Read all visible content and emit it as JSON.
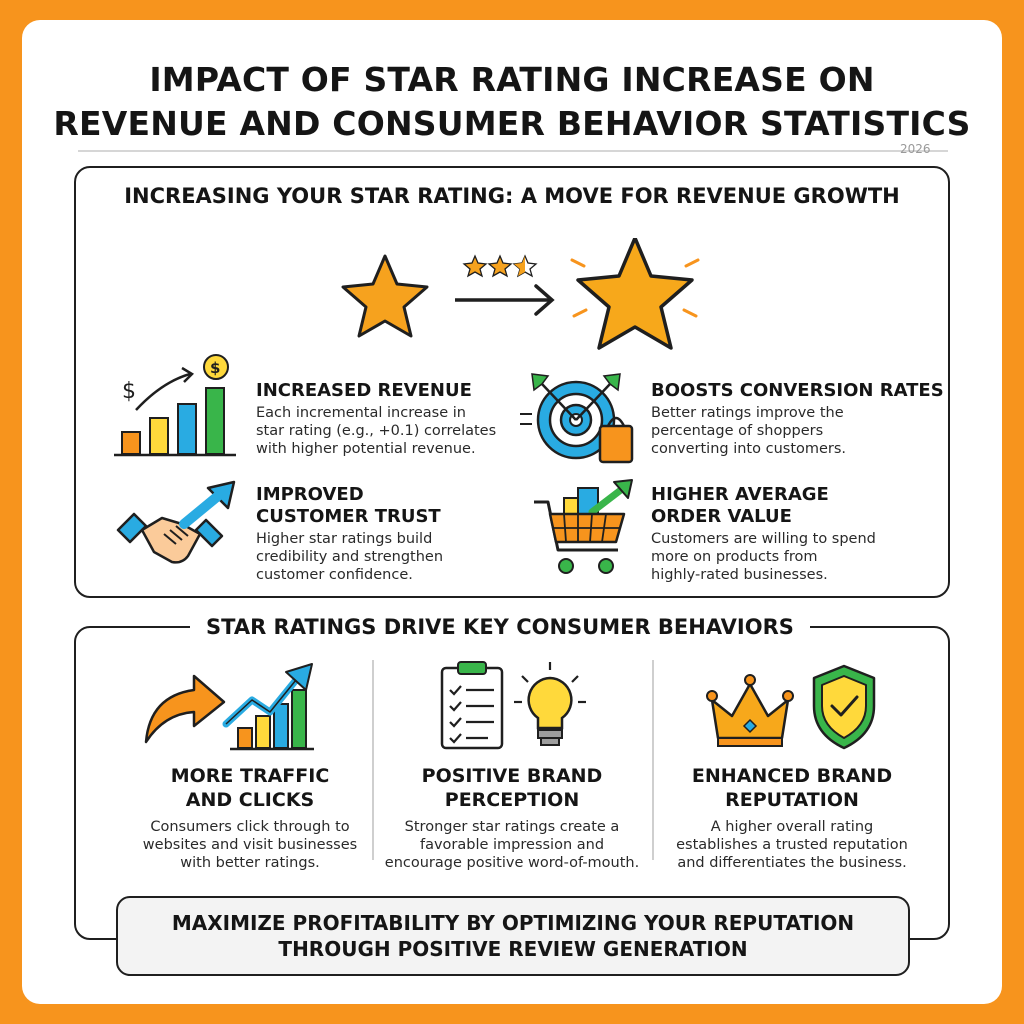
{
  "header": {
    "title_line1": "IMPACT OF STAR RATING INCREASE ON",
    "title_line2": "REVENUE AND CONSUMER BEHAVIOR STATISTICS",
    "year": "2026"
  },
  "section1": {
    "title": "INCREASING YOUR STAR RATING: A MOVE FOR REVENUE GROWTH",
    "mini_rating_stars": 2.5,
    "features": [
      {
        "icon": "revenue-chart-icon",
        "title": "INCREASED REVENUE",
        "desc_lines": [
          "Each incremental increase in",
          "star rating (e.g., +0.1) correlates",
          "with higher potential revenue."
        ]
      },
      {
        "icon": "target-bag-icon",
        "title": "BOOSTS CONVERSION RATES",
        "desc_lines": [
          "Better ratings improve the",
          "percentage of shoppers",
          "converting into customers."
        ]
      },
      {
        "icon": "handshake-icon",
        "title_lines": [
          "IMPROVED",
          "CUSTOMER TRUST"
        ],
        "desc_lines": [
          "Higher star ratings build",
          "credibility and strengthen",
          "customer confidence."
        ]
      },
      {
        "icon": "shopping-cart-icon",
        "title_lines": [
          "HIGHER AVERAGE",
          "ORDER VALUE"
        ],
        "desc_lines": [
          "Customers are willing to spend",
          "more on products from",
          "highly-rated businesses."
        ]
      }
    ]
  },
  "section2": {
    "title": "STAR RATINGS DRIVE KEY CONSUMER BEHAVIORS",
    "columns": [
      {
        "icon": "traffic-growth-icon",
        "title_lines": [
          "MORE TRAFFIC",
          "AND CLICKS"
        ],
        "desc_lines": [
          "Consumers click through to",
          "websites and visit businesses",
          "with better ratings."
        ]
      },
      {
        "icon": "checklist-lightbulb-icon",
        "title_lines": [
          "POSITIVE BRAND",
          "PERCEPTION"
        ],
        "desc_lines": [
          "Stronger star ratings create a",
          "favorable impression and",
          "encourage positive word-of-mouth."
        ]
      },
      {
        "icon": "crown-shield-icon",
        "title_lines": [
          "ENHANCED BRAND",
          "REPUTATION"
        ],
        "desc_lines": [
          "A higher overall rating",
          "establishes a trusted reputation",
          "and differentiates the business."
        ]
      }
    ]
  },
  "cta": {
    "line1": "MAXIMIZE PROFITABILITY BY OPTIMIZING YOUR REPUTATION",
    "line2": "THROUGH POSITIVE REVIEW GENERATION"
  },
  "colors": {
    "background": "#F7941D",
    "star": "#F6A21E",
    "blue": "#29ABE2",
    "green": "#39B54A",
    "yellow": "#FFD93B",
    "orange": "#F7941D"
  }
}
